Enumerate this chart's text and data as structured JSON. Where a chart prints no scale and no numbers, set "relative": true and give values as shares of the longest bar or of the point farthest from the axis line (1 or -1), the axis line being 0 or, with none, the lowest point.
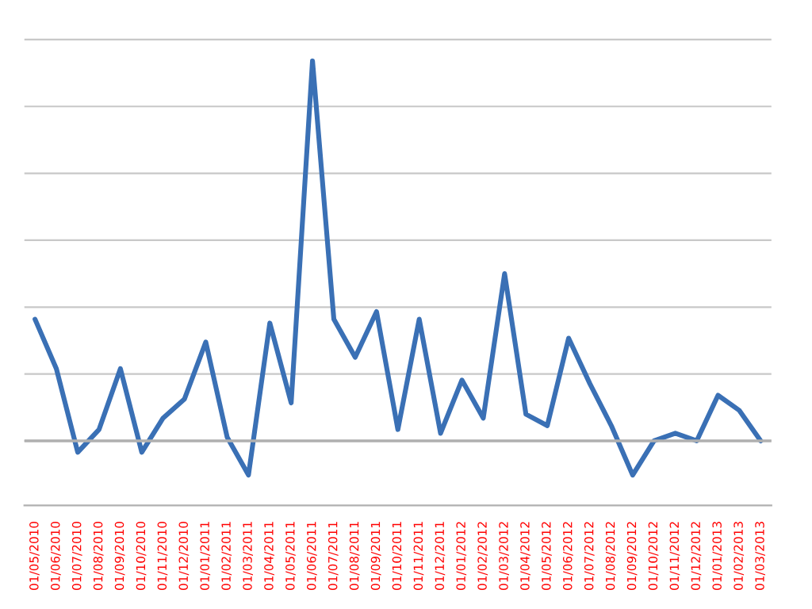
{
  "chart_data": {
    "type": "line",
    "relative": true,
    "grid": "y",
    "categories": [
      "01/05/2010",
      "01/06/2010",
      "01/07/2010",
      "01/08/2010",
      "01/09/2010",
      "01/10/2010",
      "01/11/2010",
      "01/12/2010",
      "01/01/2011",
      "01/02/2011",
      "01/03/2011",
      "01/04/2011",
      "01/05/2011",
      "01/06/2011",
      "01/07/2011",
      "01/08/2011",
      "01/09/2011",
      "01/10/2011",
      "01/11/2011",
      "01/12/2011",
      "01/01/2012",
      "01/02/2012",
      "01/03/2012",
      "01/04/2012",
      "01/05/2012",
      "01/06/2012",
      "01/07/2012",
      "01/08/2012",
      "01/09/2012",
      "01/10/2012",
      "01/11/2012",
      "01/12/2012",
      "01/01/2013",
      "01/02/2013",
      "01/03/2013"
    ],
    "series": [
      {
        "color": "#3a70b5",
        "values": [
          0.32,
          0.19,
          -0.03,
          0.03,
          0.19,
          -0.03,
          0.06,
          0.11,
          0.26,
          0.01,
          -0.09,
          0.31,
          0.1,
          1,
          0.32,
          0.22,
          0.34,
          0.03,
          0.32,
          0.02,
          0.16,
          0.06,
          0.44,
          0.07,
          0.04,
          0.27,
          0.15,
          0.04,
          -0.09,
          0,
          0.02,
          0,
          0.12,
          0.08,
          0
        ]
      }
    ]
  }
}
